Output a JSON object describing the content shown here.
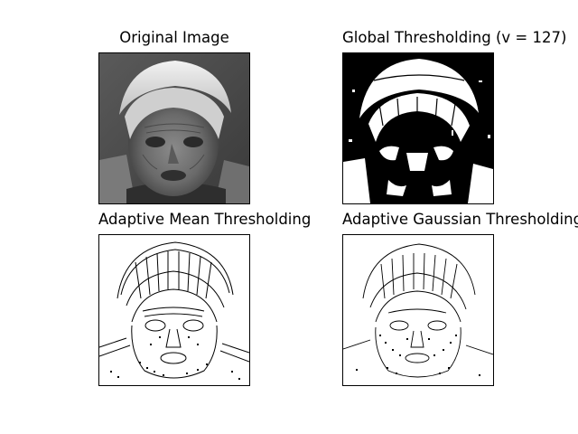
{
  "figure": {
    "panels": [
      {
        "title": "Original Image"
      },
      {
        "title": "Global Thresholding (v = 127)"
      },
      {
        "title": "Adaptive Mean Thresholding"
      },
      {
        "title": "Adaptive Gaussian Thresholding"
      }
    ]
  }
}
